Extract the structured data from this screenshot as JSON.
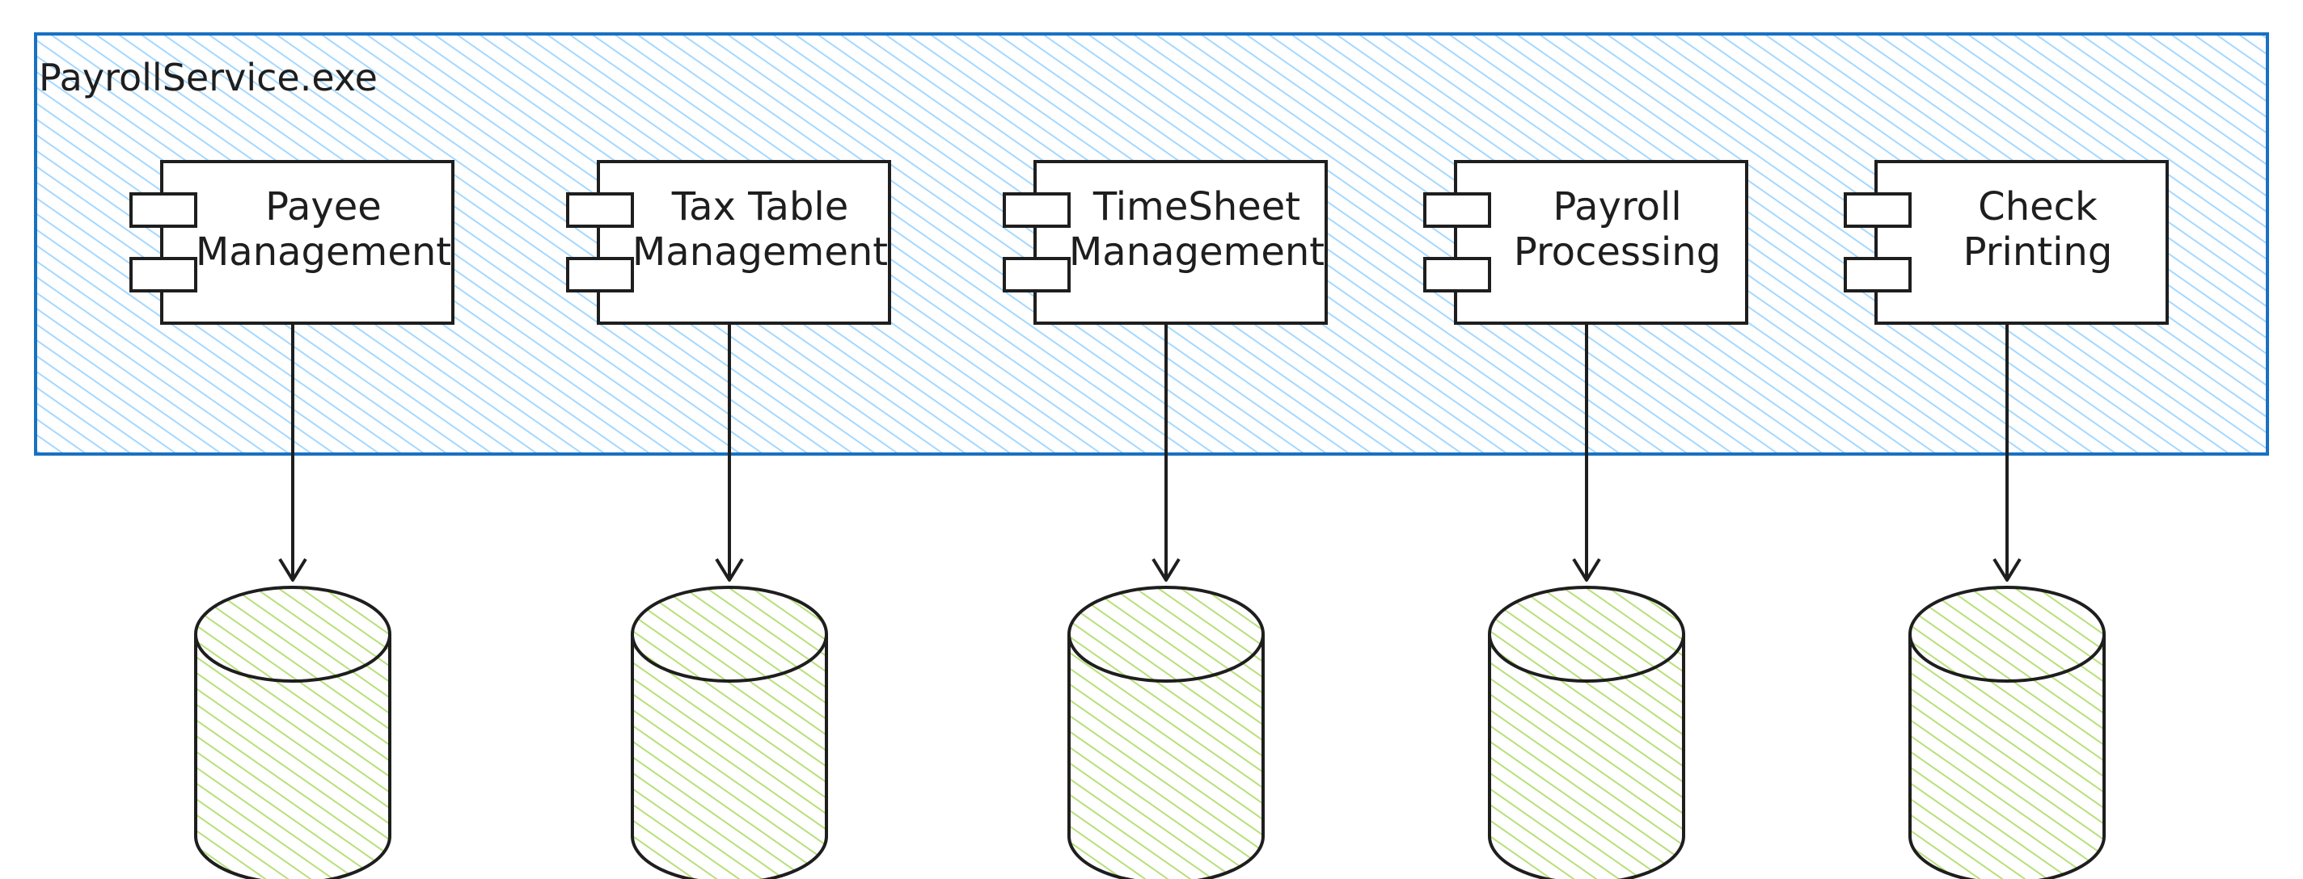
{
  "diagram": {
    "container": {
      "label": "PayrollService.exe",
      "fill": "#a5d8ff",
      "stroke": "#1971c2"
    },
    "components": [
      {
        "id": "payee",
        "lines": [
          "Payee",
          "Management"
        ]
      },
      {
        "id": "taxtable",
        "lines": [
          "Tax Table",
          "Management"
        ]
      },
      {
        "id": "timesheet",
        "lines": [
          "TimeSheet",
          "Management"
        ]
      },
      {
        "id": "payroll",
        "lines": [
          "Payroll",
          "Processing"
        ]
      },
      {
        "id": "check",
        "lines": [
          "Check",
          "Printing"
        ]
      }
    ],
    "database_fill": "#b2f2bb",
    "database_hatch": "#8fce3f",
    "stroke": "#1e1e1e"
  }
}
